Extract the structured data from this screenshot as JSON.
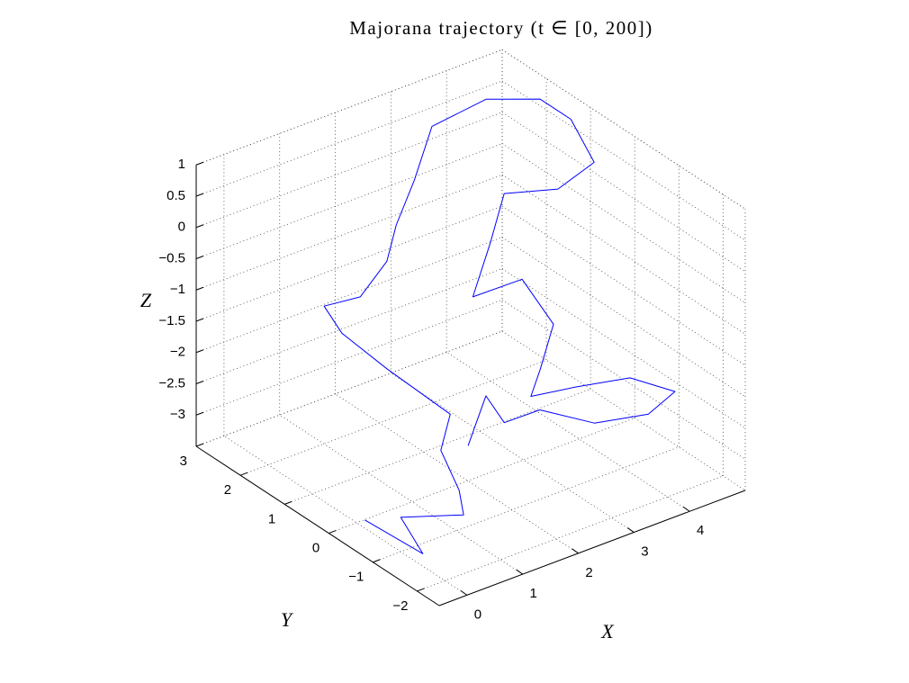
{
  "chart_data": {
    "type": "line3d",
    "title": "Majorana trajectory (t ∈ [0, 200])",
    "xlabel": "X",
    "ylabel": "Y",
    "zlabel": "Z",
    "xlim": [
      -0.5,
      5
    ],
    "ylim": [
      -2.5,
      3
    ],
    "zlim": [
      -3.5,
      1
    ],
    "xticks": [
      0,
      1,
      2,
      3,
      4
    ],
    "yticks": [
      {
        "value": -2,
        "label": "−2"
      },
      {
        "value": -1,
        "label": "−1"
      },
      0,
      1,
      2,
      3
    ],
    "zticks": [
      {
        "value": -3,
        "label": "−3"
      },
      {
        "value": -2.5,
        "label": "−2.5"
      },
      {
        "value": -2,
        "label": "−2"
      },
      {
        "value": -1.5,
        "label": "−1.5"
      },
      {
        "value": -1,
        "label": "−1"
      },
      {
        "value": -0.5,
        "label": "−0.5"
      },
      0,
      0.5,
      1
    ],
    "grid": true,
    "series": [
      {
        "color": "#0000ff",
        "x": [
          -0.25,
          0.0,
          0.0,
          1.13,
          1.05,
          0.72,
          0.89,
          1.34,
          0.53,
          0.21,
          0.86,
          1.34,
          1.5,
          2.27,
          3.19,
          4.17,
          4.79,
          4.9,
          4.85,
          4.08,
          3.28,
          2.91,
          2.32,
          3.19,
          3.31,
          2.92,
          2.34,
          3.15,
          4.12,
          4.93,
          4.45,
          3.48,
          2.5,
          1.86,
          1.53,
          1.21
        ],
        "y": [
          -0.5,
          -1.5,
          -1,
          -1,
          -1,
          -1,
          -1,
          1,
          1,
          1,
          1,
          1,
          0.99,
          1.55,
          2.31,
          2.32,
          1.88,
          1.32,
          0.73,
          0.58,
          0.79,
          0.64,
          0.29,
          0.27,
          -0.29,
          -0.48,
          -1,
          -1,
          -1,
          -1,
          -1,
          -1,
          -1,
          -1,
          -1,
          -1
        ],
        "z": [
          -3.14,
          -3.3,
          -2.95,
          -3.29,
          -2.87,
          -2.12,
          -1.6,
          -1.95,
          -1.11,
          -0.57,
          -0.64,
          -0.23,
          0.3,
          0.5,
          0.7,
          0.8,
          0.8,
          0.7,
          0.3,
          0.2,
          0.3,
          -0.3,
          -0.8,
          -0.8,
          -1.3,
          -1.8,
          -1.8,
          -1.92,
          -2.1,
          -2.59,
          -2.79,
          -2.61,
          -2.07,
          -2.06,
          -1.52,
          -2.21
        ]
      }
    ]
  }
}
